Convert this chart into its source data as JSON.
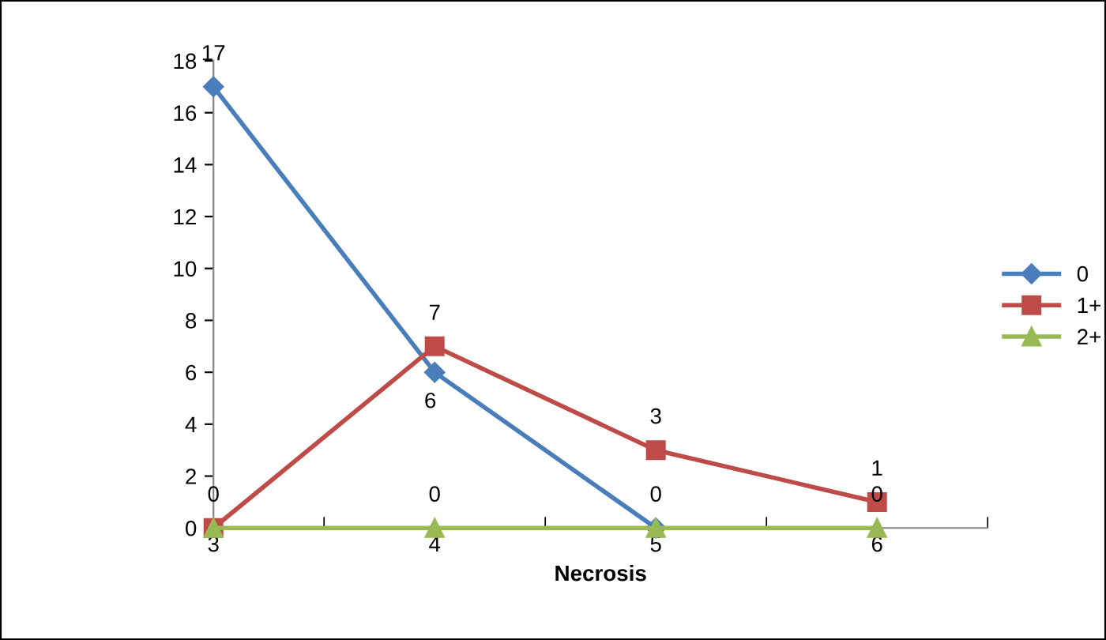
{
  "chart_data": {
    "type": "line",
    "xlabel": "Necrosis",
    "categories": [
      "3",
      "4",
      "5",
      "6"
    ],
    "ylim": [
      0,
      18
    ],
    "yticks": [
      0,
      2,
      4,
      6,
      8,
      10,
      12,
      14,
      16,
      18
    ],
    "grid": false,
    "legend": "right",
    "series": [
      {
        "name": "0",
        "color": "#4a7ebb",
        "marker": "diamond",
        "values": [
          17,
          6,
          0,
          null
        ],
        "value_labels": [
          "17",
          "6",
          null,
          null
        ]
      },
      {
        "name": "1+",
        "color": "#be4b48",
        "marker": "square",
        "values": [
          0,
          7,
          3,
          1
        ],
        "value_labels": [
          "0",
          "7",
          "3",
          "1"
        ]
      },
      {
        "name": "2+",
        "color": "#98b954",
        "marker": "triangle",
        "values": [
          0,
          0,
          0,
          0
        ],
        "value_labels": [
          null,
          "0",
          "0",
          "0"
        ]
      }
    ]
  }
}
